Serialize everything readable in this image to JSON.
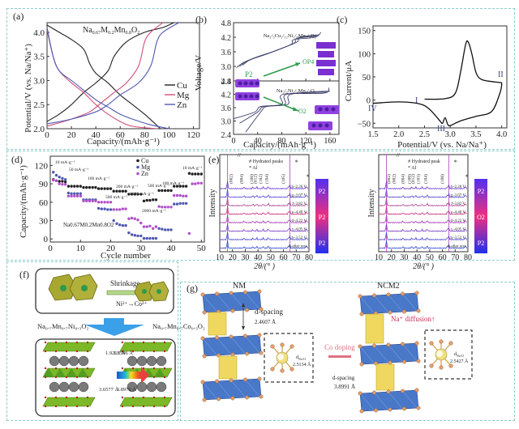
{
  "colors": {
    "frame": "#8fc9cc",
    "cu": "#222222",
    "mg": "#d0507a",
    "zn": "#4f57b0",
    "curve_b": "#3a3d6a",
    "arrow_green": "#2e9a4a",
    "crystal_purple": "#7a2fd0",
    "xrd_top": "#7a2fd0",
    "xrd_mid": "#d0306a",
    "xrd_bot": "#3a3fd0",
    "oct_olive": "#9a9a1e",
    "na_grey": "#777777",
    "slab_blue": "#4a78c8",
    "prism_yellow": "#f0d860",
    "co_pink": "#e07080",
    "na_diff_red": "#c0305a"
  },
  "chart_data": [
    {
      "panel": "(a)",
      "type": "line",
      "title": "Na0.67M0.2Mn0.8O2",
      "xlabel": "Capacity/(mAh·g⁻¹)",
      "ylabel": "Potential/V (vs. Na/Na⁺)",
      "xlim": [
        0,
        125
      ],
      "ylim": [
        2.0,
        4.2
      ],
      "xticks": [
        0,
        20,
        40,
        60,
        80,
        100,
        120
      ],
      "yticks": [
        2.0,
        2.5,
        3.0,
        3.5,
        4.0
      ],
      "legend": "right",
      "series": [
        {
          "name": "Cu",
          "color": "#222222",
          "charge": [
            [
              0,
              2.15
            ],
            [
              10,
              2.3
            ],
            [
              20,
              2.5
            ],
            [
              30,
              2.75
            ],
            [
              40,
              2.95
            ],
            [
              50,
              3.2
            ],
            [
              55,
              3.5
            ],
            [
              65,
              3.8
            ],
            [
              80,
              4.0
            ],
            [
              95,
              4.1
            ],
            [
              104,
              4.2
            ]
          ],
          "discharge": [
            [
              0,
              4.15
            ],
            [
              10,
              4.0
            ],
            [
              20,
              3.85
            ],
            [
              30,
              3.65
            ],
            [
              35,
              3.35
            ],
            [
              40,
              3.15
            ],
            [
              50,
              2.95
            ],
            [
              60,
              2.7
            ],
            [
              70,
              2.5
            ],
            [
              80,
              2.3
            ],
            [
              93,
              2.0
            ]
          ]
        },
        {
          "name": "Mg",
          "color": "#d0507a",
          "charge": [
            [
              0,
              2.05
            ],
            [
              20,
              2.2
            ],
            [
              35,
              2.35
            ],
            [
              45,
              2.55
            ],
            [
              55,
              2.75
            ],
            [
              65,
              2.95
            ],
            [
              75,
              3.3
            ],
            [
              80,
              3.8
            ],
            [
              85,
              4.0
            ],
            [
              95,
              4.2
            ]
          ],
          "discharge": [
            [
              0,
              4.05
            ],
            [
              5,
              3.5
            ],
            [
              10,
              3.2
            ],
            [
              20,
              2.95
            ],
            [
              30,
              2.75
            ],
            [
              40,
              2.5
            ],
            [
              50,
              2.3
            ],
            [
              60,
              2.15
            ],
            [
              70,
              2.05
            ],
            [
              90,
              2.0
            ]
          ]
        },
        {
          "name": "Zn",
          "color": "#4f57b0",
          "charge": [
            [
              0,
              2.1
            ],
            [
              20,
              2.2
            ],
            [
              40,
              2.35
            ],
            [
              50,
              2.5
            ],
            [
              60,
              2.7
            ],
            [
              75,
              2.95
            ],
            [
              85,
              3.3
            ],
            [
              90,
              3.8
            ],
            [
              95,
              4.0
            ],
            [
              108,
              4.2
            ]
          ],
          "discharge": [
            [
              0,
              4.1
            ],
            [
              5,
              3.5
            ],
            [
              10,
              3.2
            ],
            [
              20,
              3.0
            ],
            [
              30,
              2.8
            ],
            [
              40,
              2.6
            ],
            [
              50,
              2.45
            ],
            [
              60,
              2.3
            ],
            [
              70,
              2.2
            ],
            [
              85,
              2.08
            ],
            [
              100,
              2.0
            ]
          ]
        }
      ]
    },
    {
      "panel": "(b)",
      "type": "line",
      "xlabel": "Capacity/(mAh·g⁻¹)",
      "ylabel": "Voltage/V",
      "xlim": [
        0,
        175
      ],
      "xticks": [
        0,
        40,
        80,
        120,
        160
      ],
      "subplots": [
        {
          "label": "Na2/3Cu1/12Ni1/4Mn2/3O2",
          "ylim": [
            2.4,
            4.8
          ],
          "yticks": [
            2.4,
            3.0,
            3.6,
            4.2,
            4.8
          ],
          "series": [
            [
              [
                5,
                2.95
              ],
              [
                20,
                3.2
              ],
              [
                60,
                3.55
              ],
              [
                95,
                3.9
              ],
              [
                100,
                4.1
              ],
              [
                135,
                4.2
              ],
              [
                145,
                4.4
              ]
            ],
            [
              [
                10,
                3.0
              ],
              [
                25,
                3.25
              ],
              [
                65,
                3.6
              ],
              [
                100,
                3.95
              ],
              [
                105,
                4.15
              ],
              [
                138,
                4.25
              ]
            ],
            [
              [
                15,
                3.05
              ],
              [
                30,
                3.3
              ],
              [
                70,
                3.65
              ],
              [
                105,
                4.0
              ],
              [
                110,
                4.2
              ],
              [
                142,
                4.3
              ]
            ]
          ]
        },
        {
          "label": "Na2/3Ni1/3Mn2/3O2",
          "ylim": [
            2.4,
            4.8
          ],
          "yticks": [
            2.4,
            3.0,
            3.6,
            4.2,
            4.8
          ],
          "series": [
            [
              [
                0,
                3.1
              ],
              [
                35,
                3.4
              ],
              [
                45,
                3.65
              ],
              [
                80,
                3.75
              ],
              [
                82,
                4.2
              ],
              [
                150,
                4.25
              ],
              [
                158,
                4.5
              ]
            ],
            [
              [
                10,
                2.9
              ],
              [
                40,
                3.4
              ],
              [
                50,
                3.65
              ],
              [
                85,
                3.75
              ],
              [
                88,
                4.2
              ],
              [
                155,
                4.3
              ]
            ],
            [
              [
                20,
                2.5
              ],
              [
                45,
                3.4
              ],
              [
                55,
                3.65
              ],
              [
                90,
                3.75
              ],
              [
                95,
                4.2
              ],
              [
                160,
                4.35
              ]
            ]
          ]
        }
      ],
      "annotations": [
        "P2",
        "OP4",
        "O2"
      ]
    },
    {
      "panel": "(c)",
      "type": "line",
      "xlabel": "Potential/V (vs. Na/Na⁺)",
      "ylabel": "Current/μA",
      "xlim": [
        1.5,
        4.1
      ],
      "ylim": [
        -60,
        160
      ],
      "xticks": [
        1.5,
        2.0,
        2.5,
        3.0,
        3.5,
        4.0
      ],
      "yticks": [
        -50,
        0,
        50,
        100,
        150
      ],
      "curve": [
        [
          2.5,
          2
        ],
        [
          2.9,
          3
        ],
        [
          3.1,
          15
        ],
        [
          3.2,
          60
        ],
        [
          3.3,
          120
        ],
        [
          3.35,
          125
        ],
        [
          3.42,
          100
        ],
        [
          3.5,
          60
        ],
        [
          3.6,
          45
        ],
        [
          3.8,
          40
        ],
        [
          3.95,
          38
        ],
        [
          4.0,
          35
        ],
        [
          3.95,
          10
        ],
        [
          3.8,
          -25
        ],
        [
          3.5,
          -35
        ],
        [
          3.2,
          -45
        ],
        [
          3.0,
          -55
        ],
        [
          2.95,
          -52
        ],
        [
          2.9,
          -38
        ],
        [
          2.85,
          -50
        ],
        [
          2.8,
          -45
        ],
        [
          2.6,
          -20
        ],
        [
          2.4,
          -8
        ],
        [
          2.0,
          -4
        ],
        [
          1.5,
          -7
        ]
      ],
      "annotations": [
        "I",
        "II",
        "III",
        "IV"
      ]
    },
    {
      "panel": "(d)",
      "type": "scatter",
      "xlabel": "Cycle number",
      "ylabel": "Capacity/(mAh·g⁻¹)",
      "xlim": [
        0,
        51
      ],
      "ylim": [
        -5,
        135
      ],
      "xticks": [
        0,
        10,
        20,
        30,
        40,
        50
      ],
      "yticks": [
        0,
        30,
        60,
        90,
        120
      ],
      "legend": "top-center",
      "inset_label": "Na0.67M0.2Mn0.8O2",
      "rate_labels": [
        "10 mA·g⁻¹",
        "50 mA·g⁻¹",
        "100 mA·g⁻¹",
        "200 mA·g⁻¹",
        "500 mA·g⁻¹",
        "1000 mA·g⁻¹",
        "2000 mA·g⁻¹",
        "500 mA·g⁻¹",
        "100 mA·g⁻¹",
        "10 mA·g⁻¹"
      ],
      "series": [
        {
          "name": "Cu",
          "color": "#222222",
          "values": [
            97,
            95,
            94,
            94,
            93,
            86,
            86,
            86,
            86,
            86,
            84,
            84,
            84,
            84,
            84,
            82,
            82,
            82,
            82,
            82,
            78,
            78,
            78,
            78,
            78,
            73,
            73,
            73,
            73,
            73,
            62,
            63,
            63,
            64,
            64,
            79,
            79,
            79,
            79,
            79,
            86,
            86,
            86,
            86,
            86,
            107,
            106,
            106,
            106,
            106
          ]
        },
        {
          "name": "Mg",
          "color": "#4f57b0",
          "values": [
            109,
            104,
            101,
            99,
            97,
            75,
            74,
            74,
            74,
            74,
            64,
            64,
            64,
            64,
            64,
            50,
            49,
            49,
            48,
            48,
            30,
            25,
            23,
            22,
            22,
            10,
            7,
            6,
            5,
            5,
            1,
            1,
            1,
            1,
            1,
            17,
            16,
            15,
            15,
            15,
            57,
            57,
            58,
            58,
            58,
            null,
            null,
            null,
            null,
            null
          ]
        },
        {
          "name": "Zn",
          "color": "#b050c8",
          "values": [
            96,
            95,
            90,
            89,
            89,
            70,
            70,
            70,
            70,
            70,
            62,
            62,
            62,
            62,
            62,
            60,
            60,
            60,
            60,
            60,
            48,
            48,
            48,
            49,
            49,
            33,
            34,
            33,
            31,
            26,
            20,
            20,
            21,
            17,
            20,
            53,
            52,
            52,
            52,
            52,
            71,
            71,
            71,
            70,
            70,
            9,
            90,
            90,
            91,
            91
          ]
        }
      ]
    },
    {
      "panel": "(e-left)",
      "type": "line",
      "xlabel": "2θ/(° )",
      "ylabel": "Intensity",
      "xlim": [
        10,
        80
      ],
      "xticks": [
        10,
        20,
        30,
        40,
        50,
        60,
        70,
        80
      ],
      "legend_items": [
        "# Hydrated peaks",
        "* Al"
      ],
      "peak_labels": [
        "(002)",
        "(004)",
        "(100)",
        "(012)",
        "(102)",
        "(104)",
        "(105)"
      ],
      "traces": [
        "h–2.20 V",
        "g–3.07 V",
        "f–3.82 V",
        "e–4.40 V",
        "d–4.22 V",
        "c–4.05 V",
        "b–3.52 V",
        "a–after rest"
      ],
      "colorbar_phases": [
        "P2",
        "P2",
        "P2"
      ]
    },
    {
      "panel": "(e-right)",
      "type": "line",
      "xlabel": "2θ/(° )",
      "ylabel": "Intensity",
      "xlim": [
        10,
        80
      ],
      "xticks": [
        10,
        20,
        30,
        40,
        50,
        60,
        70,
        80
      ],
      "legend_items": [
        "# Hydrated peak",
        "* Al"
      ],
      "peak_labels": [
        "(002)",
        "(002)",
        "(004)",
        "(100)",
        "(012)",
        "(103)",
        "(104)",
        "(106)"
      ],
      "traces": [
        "h–2.20 V",
        "g–3.07 V",
        "f–3.82 V",
        "e–4.40 V",
        "d–4.22 V",
        "c–4.05 V",
        "b–3.52 V",
        "a–after rest"
      ],
      "colorbar_phases": [
        "P2",
        "O2",
        "P2"
      ]
    }
  ],
  "panels": {
    "a": {
      "label": "(a)"
    },
    "b": {
      "label": "(b)",
      "top_formula": "Na₂/₃Cu₁/₁₂Ni₁/₄Mn₂/₃O₂",
      "bottom_formula": "Na₂/₃Ni₁/₃Mn₂/₃O₂",
      "p2": "P2",
      "op4": "OP4",
      "o2": "O2"
    },
    "c": {
      "label": "(c)",
      "I": "I",
      "II": "II",
      "III": "III",
      "IV": "IV"
    },
    "d": {
      "label": "(d)"
    },
    "e": {
      "label": "(e)"
    },
    "f": {
      "label": "(f)",
      "shrinkage": "Shrinkage",
      "ion_change": "Ni²⁺→Co³⁺",
      "left_formula": "Na₀.₇Mn₀.₇Ni₀.₃O₂",
      "right_formula": "Na₀.₇Mn₀.₇Co₀.₃O₂",
      "left_bond": "1.9213 Å",
      "right_bond": "1.8596 Å",
      "left_spacing": "3.6577 Å",
      "right_spacing": "3.8976 Å"
    },
    "g": {
      "label": "(g)",
      "left_title": "NM",
      "right_title": "NCM2",
      "d_spacing_label": "d-spacing",
      "left_d_spacing": "2.4607 Å",
      "right_d_spacing_label": "d-spacing",
      "right_d_spacing": "3.8991 Å",
      "co_doping": "Co doping",
      "na_diffusion": "Na⁺ diffusion↑",
      "d_na_o": "d",
      "d_na_o_sub": "Na-O",
      "left_dnao": "2.5134 Å",
      "right_dnao": "2.5427 Å"
    }
  }
}
